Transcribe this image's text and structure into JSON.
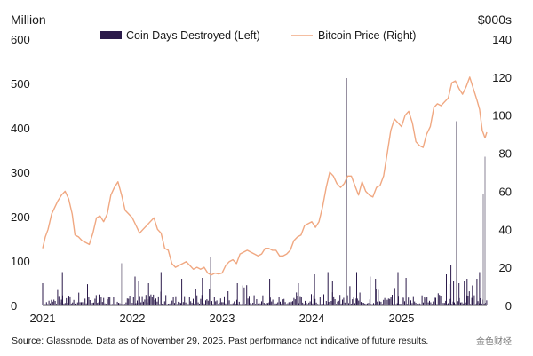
{
  "chart_data": {
    "type": "bar+line",
    "left_axis": {
      "unit_label": "Million",
      "ylim": [
        0,
        600
      ],
      "ticks": [
        "0",
        "100",
        "200",
        "300",
        "400",
        "500",
        "600"
      ]
    },
    "right_axis": {
      "unit_label": "$000s",
      "ylim": [
        0,
        140
      ],
      "ticks": [
        "0",
        "20",
        "40",
        "60",
        "80",
        "100",
        "120",
        "140"
      ]
    },
    "x_axis": {
      "range": [
        2021.0,
        2025.95
      ],
      "ticks": [
        "2021",
        "2022",
        "2023",
        "2024",
        "2025"
      ]
    },
    "legend": {
      "position": "top",
      "entries": [
        {
          "label": "Coin Days Destroyed (Left)",
          "color": "#2b1a4a",
          "kind": "bar"
        },
        {
          "label": "Bitcoin Price (Right)",
          "color": "#f0a882",
          "kind": "line"
        }
      ]
    },
    "series": [
      {
        "name": "Bitcoin Price (Right)",
        "axis": "right",
        "unit": "$000s",
        "color": "#f0a882",
        "points": [
          [
            2021.0,
            30
          ],
          [
            2021.03,
            36
          ],
          [
            2021.06,
            40
          ],
          [
            2021.1,
            48
          ],
          [
            2021.14,
            52
          ],
          [
            2021.17,
            55
          ],
          [
            2021.21,
            58
          ],
          [
            2021.25,
            60
          ],
          [
            2021.29,
            56
          ],
          [
            2021.33,
            48
          ],
          [
            2021.36,
            37
          ],
          [
            2021.4,
            36
          ],
          [
            2021.44,
            34
          ],
          [
            2021.48,
            33
          ],
          [
            2021.52,
            32
          ],
          [
            2021.56,
            38
          ],
          [
            2021.6,
            46
          ],
          [
            2021.64,
            47
          ],
          [
            2021.68,
            44
          ],
          [
            2021.72,
            48
          ],
          [
            2021.76,
            58
          ],
          [
            2021.8,
            62
          ],
          [
            2021.84,
            65
          ],
          [
            2021.88,
            58
          ],
          [
            2021.92,
            50
          ],
          [
            2021.96,
            48
          ],
          [
            2022.0,
            46
          ],
          [
            2022.04,
            42
          ],
          [
            2022.08,
            38
          ],
          [
            2022.12,
            40
          ],
          [
            2022.16,
            42
          ],
          [
            2022.2,
            44
          ],
          [
            2022.24,
            46
          ],
          [
            2022.28,
            40
          ],
          [
            2022.32,
            38
          ],
          [
            2022.36,
            30
          ],
          [
            2022.4,
            29
          ],
          [
            2022.44,
            22
          ],
          [
            2022.48,
            20
          ],
          [
            2022.52,
            21
          ],
          [
            2022.56,
            22
          ],
          [
            2022.6,
            23
          ],
          [
            2022.64,
            21
          ],
          [
            2022.68,
            19
          ],
          [
            2022.72,
            20
          ],
          [
            2022.76,
            19
          ],
          [
            2022.8,
            20
          ],
          [
            2022.84,
            17
          ],
          [
            2022.88,
            16
          ],
          [
            2022.92,
            17
          ],
          [
            2022.96,
            16.5
          ],
          [
            2023.0,
            17
          ],
          [
            2023.04,
            21
          ],
          [
            2023.08,
            23
          ],
          [
            2023.12,
            24
          ],
          [
            2023.16,
            22
          ],
          [
            2023.2,
            27
          ],
          [
            2023.24,
            28
          ],
          [
            2023.28,
            29
          ],
          [
            2023.32,
            28
          ],
          [
            2023.36,
            27
          ],
          [
            2023.4,
            26
          ],
          [
            2023.44,
            27
          ],
          [
            2023.48,
            30
          ],
          [
            2023.52,
            30
          ],
          [
            2023.56,
            29
          ],
          [
            2023.6,
            29
          ],
          [
            2023.64,
            26
          ],
          [
            2023.68,
            26
          ],
          [
            2023.72,
            27
          ],
          [
            2023.76,
            29
          ],
          [
            2023.8,
            34
          ],
          [
            2023.84,
            36
          ],
          [
            2023.88,
            37
          ],
          [
            2023.92,
            42
          ],
          [
            2023.96,
            43
          ],
          [
            2024.0,
            44
          ],
          [
            2024.04,
            41
          ],
          [
            2024.08,
            44
          ],
          [
            2024.12,
            52
          ],
          [
            2024.16,
            62
          ],
          [
            2024.2,
            70
          ],
          [
            2024.24,
            68
          ],
          [
            2024.28,
            64
          ],
          [
            2024.32,
            62
          ],
          [
            2024.36,
            64
          ],
          [
            2024.4,
            68
          ],
          [
            2024.44,
            68
          ],
          [
            2024.48,
            63
          ],
          [
            2024.52,
            58
          ],
          [
            2024.56,
            65
          ],
          [
            2024.6,
            60
          ],
          [
            2024.64,
            58
          ],
          [
            2024.68,
            57
          ],
          [
            2024.72,
            62
          ],
          [
            2024.76,
            63
          ],
          [
            2024.8,
            68
          ],
          [
            2024.84,
            80
          ],
          [
            2024.88,
            92
          ],
          [
            2024.92,
            98
          ],
          [
            2024.96,
            96
          ],
          [
            2025.0,
            94
          ],
          [
            2025.04,
            100
          ],
          [
            2025.08,
            102
          ],
          [
            2025.12,
            96
          ],
          [
            2025.16,
            86
          ],
          [
            2025.2,
            84
          ],
          [
            2025.24,
            83
          ],
          [
            2025.28,
            90
          ],
          [
            2025.32,
            94
          ],
          [
            2025.36,
            104
          ],
          [
            2025.4,
            106
          ],
          [
            2025.44,
            105
          ],
          [
            2025.48,
            107
          ],
          [
            2025.52,
            109
          ],
          [
            2025.56,
            117
          ],
          [
            2025.6,
            118
          ],
          [
            2025.64,
            114
          ],
          [
            2025.68,
            111
          ],
          [
            2025.72,
            115
          ],
          [
            2025.76,
            120
          ],
          [
            2025.8,
            114
          ],
          [
            2025.84,
            108
          ],
          [
            2025.87,
            103
          ],
          [
            2025.9,
            92
          ],
          [
            2025.93,
            88
          ],
          [
            2025.95,
            91
          ]
        ]
      },
      {
        "name": "Coin Days Destroyed (Left)",
        "axis": "left",
        "unit": "Million",
        "color": "#2b1a4a",
        "spikes": [
          [
            2021.0,
            50
          ],
          [
            2021.22,
            75
          ],
          [
            2021.54,
            125
          ],
          [
            2021.88,
            95
          ],
          [
            2022.03,
            65
          ],
          [
            2022.07,
            55
          ],
          [
            2022.18,
            50
          ],
          [
            2022.32,
            75
          ],
          [
            2022.55,
            60
          ],
          [
            2022.78,
            62
          ],
          [
            2022.87,
            110
          ],
          [
            2023.17,
            50
          ],
          [
            2023.23,
            45
          ],
          [
            2023.53,
            60
          ],
          [
            2023.85,
            50
          ],
          [
            2024.03,
            70
          ],
          [
            2024.18,
            75
          ],
          [
            2024.23,
            55
          ],
          [
            2024.39,
            512
          ],
          [
            2024.5,
            75
          ],
          [
            2024.65,
            65
          ],
          [
            2024.71,
            60
          ],
          [
            2024.74,
            35
          ],
          [
            2024.96,
            75
          ],
          [
            2025.05,
            62
          ],
          [
            2025.5,
            70
          ],
          [
            2025.53,
            48
          ],
          [
            2025.55,
            90
          ],
          [
            2025.58,
            55
          ],
          [
            2025.61,
            415
          ],
          [
            2025.64,
            50
          ],
          [
            2025.7,
            55
          ],
          [
            2025.73,
            60
          ],
          [
            2025.79,
            45
          ],
          [
            2025.84,
            60
          ],
          [
            2025.87,
            75
          ],
          [
            2025.91,
            250
          ],
          [
            2025.93,
            335
          ]
        ]
      }
    ]
  },
  "footer": {
    "source": "Source: Glassnode. Data as of November 29, 2025. Past performance not indicative of future results.",
    "watermark": "金色财经"
  }
}
